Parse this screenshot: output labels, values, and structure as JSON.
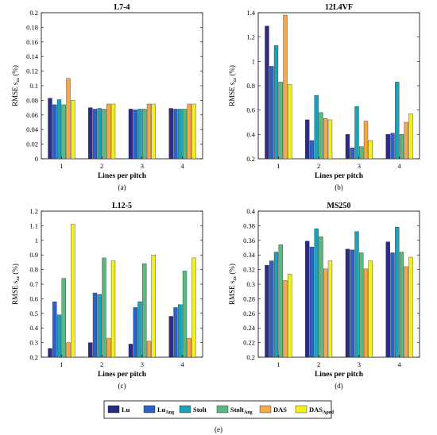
{
  "figure_label": "(e)",
  "legend": {
    "entries": [
      {
        "label": "Lu",
        "sub": "",
        "color": "#2b2a86"
      },
      {
        "label": "Lu",
        "sub": "Ang",
        "color": "#2a62c9"
      },
      {
        "label": "Stolt",
        "sub": "",
        "color": "#1aa3b8"
      },
      {
        "label": "Stolt",
        "sub": "Ang",
        "color": "#5cb87f"
      },
      {
        "label": "DAS",
        "sub": "",
        "color": "#f5a74a"
      },
      {
        "label": "DAS",
        "sub": "Apod",
        "color": "#f3ee1e"
      }
    ]
  },
  "chart_data": [
    {
      "type": "bar",
      "title": "L7-4",
      "panel_label": "(a)",
      "xlabel": "Lines per pitch",
      "ylabel_main": "RMSE s",
      "ylabel_sub": "zz",
      "ylabel_unit": " (%)",
      "categories": [
        "1",
        "2",
        "3",
        "4"
      ],
      "ylim": [
        0,
        0.2
      ],
      "yticks": [
        0,
        0.02,
        0.04,
        0.06,
        0.08,
        0.1,
        0.12,
        0.14,
        0.16,
        0.18,
        0.2
      ],
      "ytick_labels": [
        "0",
        "0.02",
        "0.04",
        "0.06",
        "0.08",
        "0.1",
        "0.12",
        "0.14",
        "0.16",
        "0.18",
        "0.2"
      ],
      "series": [
        {
          "values": [
            0.083,
            0.07,
            0.068,
            0.069
          ]
        },
        {
          "values": [
            0.074,
            0.068,
            0.067,
            0.068
          ]
        },
        {
          "values": [
            0.081,
            0.069,
            0.068,
            0.068
          ]
        },
        {
          "values": [
            0.074,
            0.068,
            0.068,
            0.068
          ]
        },
        {
          "values": [
            0.11,
            0.075,
            0.075,
            0.075
          ]
        },
        {
          "values": [
            0.08,
            0.075,
            0.075,
            0.075
          ]
        }
      ]
    },
    {
      "type": "bar",
      "title": "12L4VF",
      "panel_label": "(b)",
      "xlabel": "Lines per pitch",
      "ylabel_main": "RMSE s",
      "ylabel_sub": "zz",
      "ylabel_unit": " (%)",
      "categories": [
        "1",
        "2",
        "3",
        "4"
      ],
      "ylim": [
        0.2,
        1.4
      ],
      "yticks": [
        0.2,
        0.4,
        0.6,
        0.8,
        1.0,
        1.2,
        1.4
      ],
      "ytick_labels": [
        "0.2",
        "0.4",
        "0.6",
        "0.8",
        "1",
        "1.2",
        "1.4"
      ],
      "series": [
        {
          "values": [
            1.29,
            0.52,
            0.4,
            0.4
          ]
        },
        {
          "values": [
            0.96,
            0.35,
            0.29,
            0.41
          ]
        },
        {
          "values": [
            1.13,
            0.72,
            0.63,
            0.83
          ]
        },
        {
          "values": [
            0.83,
            0.58,
            0.3,
            0.4
          ]
        },
        {
          "values": [
            1.38,
            0.53,
            0.51,
            0.5
          ]
        },
        {
          "values": [
            0.81,
            0.52,
            0.35,
            0.57
          ]
        }
      ]
    },
    {
      "type": "bar",
      "title": "L12-5",
      "panel_label": "(c)",
      "xlabel": "Lines per pitch",
      "ylabel_main": "RMSE s",
      "ylabel_sub": "zz",
      "ylabel_unit": " (%)",
      "categories": [
        "1",
        "2",
        "3",
        "4"
      ],
      "ylim": [
        0.2,
        1.2
      ],
      "yticks": [
        0.2,
        0.3,
        0.4,
        0.5,
        0.6,
        0.7,
        0.8,
        0.9,
        1.0,
        1.1,
        1.2
      ],
      "ytick_labels": [
        "0.2",
        "0.3",
        "0.4",
        "0.5",
        "0.6",
        "0.7",
        "0.8",
        "0.9",
        "1",
        "1.1",
        "1.2"
      ],
      "series": [
        {
          "values": [
            0.26,
            0.3,
            0.29,
            0.48
          ]
        },
        {
          "values": [
            0.58,
            0.64,
            0.54,
            0.54
          ]
        },
        {
          "values": [
            0.49,
            0.63,
            0.58,
            0.56
          ]
        },
        {
          "values": [
            0.74,
            0.88,
            0.84,
            0.79
          ]
        },
        {
          "values": [
            0.3,
            0.33,
            0.31,
            0.33
          ]
        },
        {
          "values": [
            1.11,
            0.86,
            0.9,
            0.88
          ]
        }
      ]
    },
    {
      "type": "bar",
      "title": "MS250",
      "panel_label": "(d)",
      "xlabel": "Lines per pitch",
      "ylabel_main": "RMSE s",
      "ylabel_sub": "zz",
      "ylabel_unit": " (%)",
      "categories": [
        "1",
        "2",
        "3",
        "4"
      ],
      "ylim": [
        0.2,
        0.4
      ],
      "yticks": [
        0.2,
        0.22,
        0.24,
        0.26,
        0.28,
        0.3,
        0.32,
        0.34,
        0.36,
        0.38,
        0.4
      ],
      "ytick_labels": [
        "0.2",
        "0.22",
        "0.24",
        "0.26",
        "0.28",
        "0.3",
        "0.32",
        "0.34",
        "0.36",
        "0.38",
        "0.4"
      ],
      "series": [
        {
          "values": [
            0.326,
            0.359,
            0.348,
            0.358
          ]
        },
        {
          "values": [
            0.332,
            0.351,
            0.347,
            0.343
          ]
        },
        {
          "values": [
            0.344,
            0.376,
            0.372,
            0.378
          ]
        },
        {
          "values": [
            0.354,
            0.365,
            0.343,
            0.344
          ]
        },
        {
          "values": [
            0.305,
            0.321,
            0.321,
            0.324
          ]
        },
        {
          "values": [
            0.314,
            0.332,
            0.332,
            0.337
          ]
        }
      ]
    }
  ]
}
